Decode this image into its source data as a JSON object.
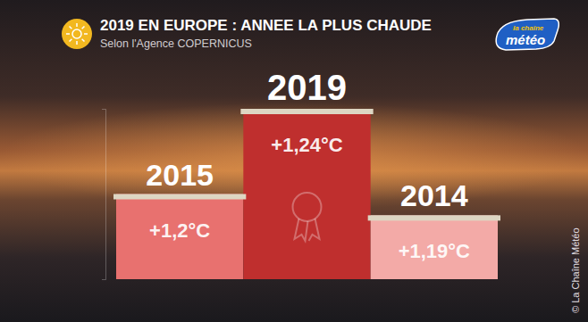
{
  "chart_data": {
    "type": "bar",
    "title": "2019 EN EUROPE : ANNEE LA PLUS CHAUDE",
    "subtitle": "Selon l'Agence COPERNICUS",
    "logo": [
      "la chaîne",
      "météo"
    ],
    "credit": "© La Chaîne Météo",
    "categories": [
      "2015",
      "2019",
      "2014"
    ],
    "values": [
      1.2,
      1.24,
      1.19
    ],
    "value_labels": [
      "+1,2°C",
      "+1,24°C",
      "+1,19°C"
    ],
    "colors": [
      "#e8716f",
      "#bf2f2e",
      "#f3aaa7"
    ],
    "ylim": [
      1.16,
      1.24
    ],
    "tick_labels": false,
    "grid": false,
    "data_labels": true
  }
}
